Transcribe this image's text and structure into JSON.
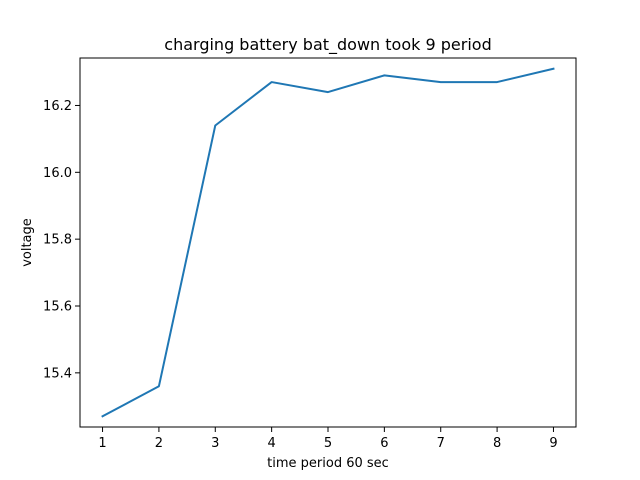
{
  "chart_data": {
    "type": "line",
    "title": "charging battery bat_down took 9 period",
    "xlabel": "time period 60 sec",
    "ylabel": "voltage",
    "x": [
      1,
      2,
      3,
      4,
      5,
      6,
      7,
      8,
      9
    ],
    "series": [
      {
        "values": [
          15.27,
          15.36,
          16.14,
          16.27,
          16.24,
          16.29,
          16.27,
          16.27,
          16.31
        ],
        "color": "#1f77b4"
      }
    ],
    "xlim": [
      0.6,
      9.4
    ],
    "ylim": [
      15.238,
      16.342
    ],
    "xticks": [
      1,
      2,
      3,
      4,
      5,
      6,
      7,
      8,
      9
    ],
    "xtick_labels": [
      "1",
      "2",
      "3",
      "4",
      "5",
      "6",
      "7",
      "8",
      "9"
    ],
    "yticks": [
      15.4,
      15.6,
      15.8,
      16.0,
      16.2
    ],
    "ytick_labels": [
      "15.4",
      "15.6",
      "15.8",
      "16.0",
      "16.2"
    ],
    "grid": false,
    "legend": "none"
  }
}
